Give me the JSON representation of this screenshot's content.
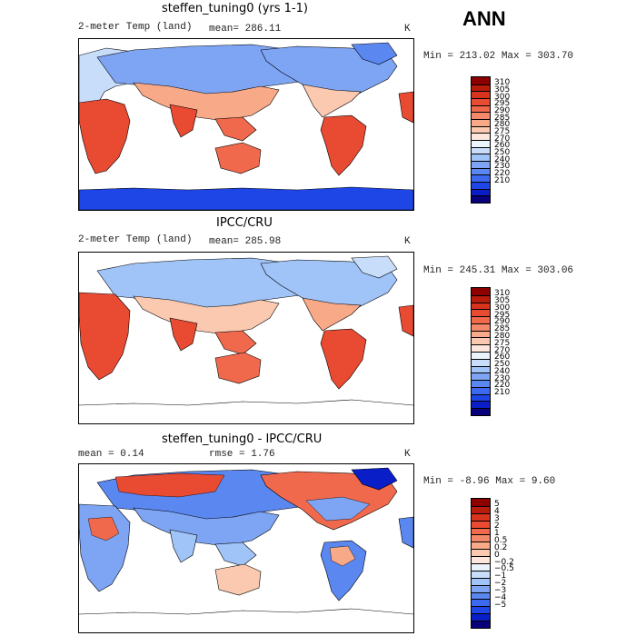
{
  "season": "ANN",
  "colors": {
    "temp_levels": [
      "#08007a",
      "#0a1ec8",
      "#1e46e6",
      "#3c69f0",
      "#5a87f0",
      "#7ea5f4",
      "#a0c3f8",
      "#c8ddfa",
      "#ebf3fc",
      "#fde7dc",
      "#fbc9b0",
      "#f8a987",
      "#f4886a",
      "#f0694c",
      "#e84a32",
      "#d8331c",
      "#b81c0a",
      "#8c0000"
    ],
    "diff_levels": [
      "#08007a",
      "#0a1ec8",
      "#1e46e6",
      "#3c69f0",
      "#5a87f0",
      "#7ea5f4",
      "#a0c3f8",
      "#c8ddfa",
      "#ebf3fc",
      "#fde7dc",
      "#fbc9b0",
      "#f8a987",
      "#f4886a",
      "#f0694c",
      "#e84a32",
      "#d8331c",
      "#b81c0a",
      "#8c0000"
    ]
  },
  "panels": [
    {
      "title": "steffen_tuning0 (yrs 1-1)",
      "variable": "2-meter Temp (land)",
      "stat_left": "mean= 286.11",
      "stat_right": "",
      "units": "K",
      "minmax": "Min = 213.02 Max = 303.70",
      "colorbar_labels": [
        "310",
        "305",
        "300",
        "295",
        "290",
        "285",
        "280",
        "275",
        "270",
        "260",
        "250",
        "240",
        "230",
        "220",
        "210"
      ]
    },
    {
      "title": "IPCC/CRU",
      "variable": "2-meter Temp (land)",
      "stat_left": "mean= 285.98",
      "stat_right": "",
      "units": "K",
      "minmax": "Min = 245.31 Max = 303.06",
      "colorbar_labels": [
        "310",
        "305",
        "300",
        "295",
        "290",
        "285",
        "280",
        "275",
        "270",
        "260",
        "250",
        "240",
        "230",
        "220",
        "210"
      ]
    },
    {
      "title": "steffen_tuning0 - IPCC/CRU",
      "variable": "mean =   0.14",
      "stat_left": "rmse =   1.76",
      "stat_right": "",
      "units": "K",
      "minmax": "Min =  -8.96 Max =   9.60",
      "colorbar_labels": [
        "5",
        "4",
        "3",
        "2",
        "1",
        "0.5",
        "0.2",
        "0",
        "−0.2",
        "−0.5",
        "−1",
        "−2",
        "−3",
        "−4",
        "−5"
      ]
    }
  ]
}
